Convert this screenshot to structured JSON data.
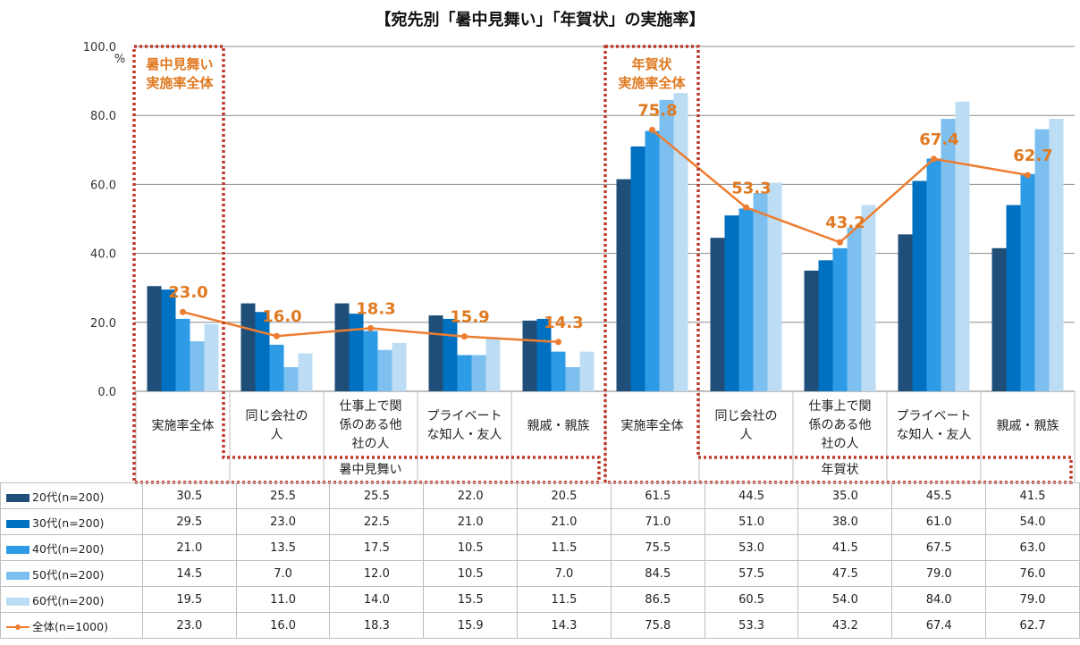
{
  "chart_data": {
    "type": "bar",
    "title": "【宛先別「暑中見舞い」「年賀状」の実施率】",
    "unit": "%",
    "ylim": [
      0,
      100
    ],
    "yticks": [
      "0.0",
      "20.0",
      "40.0",
      "60.0",
      "80.0",
      "100.0"
    ],
    "grid": true,
    "groups": [
      {
        "name": "暑中見舞い",
        "categories": [
          "実施率全体",
          "同じ会社の人",
          "仕事上で関係のある他社の人",
          "プライベートな知人・友人",
          "親戚・親族"
        ]
      },
      {
        "name": "年賀状",
        "categories": [
          "実施率全体",
          "同じ会社の人",
          "仕事上で関係のある他社の人",
          "プライベートな知人・友人",
          "親戚・親族"
        ]
      }
    ],
    "category_labels": [
      [
        "実施率全体"
      ],
      [
        "同じ会社の",
        "人"
      ],
      [
        "仕事上で関",
        "係のある他",
        "社の人"
      ],
      [
        "プライベート",
        "な知人・友人"
      ],
      [
        "親戚・親族"
      ],
      [
        "実施率全体"
      ],
      [
        "同じ会社の",
        "人"
      ],
      [
        "仕事上で関",
        "係のある他",
        "社の人"
      ],
      [
        "プライベート",
        "な知人・友人"
      ],
      [
        "親戚・親族"
      ]
    ],
    "series": [
      {
        "name": "20代(n=200)",
        "color": "#1F4E79",
        "values": [
          30.5,
          25.5,
          25.5,
          22.0,
          20.5,
          61.5,
          44.5,
          35.0,
          45.5,
          41.5
        ]
      },
      {
        "name": "30代(n=200)",
        "color": "#0070C0",
        "values": [
          29.5,
          23.0,
          22.5,
          21.0,
          21.0,
          71.0,
          51.0,
          38.0,
          61.0,
          54.0
        ]
      },
      {
        "name": "40代(n=200)",
        "color": "#2E9BE6",
        "values": [
          21.0,
          13.5,
          17.5,
          10.5,
          11.5,
          75.5,
          53.0,
          41.5,
          67.5,
          63.0
        ]
      },
      {
        "name": "50代(n=200)",
        "color": "#7DC0F0",
        "values": [
          14.5,
          7.0,
          12.0,
          10.5,
          7.0,
          84.5,
          57.5,
          47.5,
          79.0,
          76.0
        ]
      },
      {
        "name": "60代(n=200)",
        "color": "#BDDDF5",
        "values": [
          19.5,
          11.0,
          14.0,
          15.5,
          11.5,
          86.5,
          60.5,
          54.0,
          84.0,
          79.0
        ]
      }
    ],
    "line_series": {
      "name": "全体(n=1000)",
      "color": "#ED7D31",
      "values": [
        23.0,
        16.0,
        18.3,
        15.9,
        14.3,
        75.8,
        53.3,
        43.2,
        67.4,
        62.7
      ]
    },
    "table_values": {
      "20代(n=200)": [
        "30.5",
        "25.5",
        "25.5",
        "22.0",
        "20.5",
        "61.5",
        "44.5",
        "35.0",
        "45.5",
        "41.5"
      ],
      "30代(n=200)": [
        "29.5",
        "23.0",
        "22.5",
        "21.0",
        "21.0",
        "71.0",
        "51.0",
        "38.0",
        "61.0",
        "54.0"
      ],
      "40代(n=200)": [
        "21.0",
        "13.5",
        "17.5",
        "10.5",
        "11.5",
        "75.5",
        "53.0",
        "41.5",
        "67.5",
        "63.0"
      ],
      "50代(n=200)": [
        "14.5",
        "7.0",
        "12.0",
        "10.5",
        "7.0",
        "84.5",
        "57.5",
        "47.5",
        "79.0",
        "76.0"
      ],
      "60代(n=200)": [
        "19.5",
        "11.0",
        "14.0",
        "15.5",
        "11.5",
        "86.5",
        "60.5",
        "54.0",
        "84.0",
        "79.0"
      ],
      "全体(n=1000)": [
        "23.0",
        "16.0",
        "18.3",
        "15.9",
        "14.3",
        "75.8",
        "53.3",
        "43.2",
        "67.4",
        "62.7"
      ]
    },
    "annotations": [
      {
        "lines": [
          "暑中見舞い",
          "実施率全体"
        ]
      },
      {
        "lines": [
          "年賀状",
          "実施率全体"
        ]
      }
    ],
    "highlight_color": "#C0392B",
    "label_color": "#E07A22"
  }
}
